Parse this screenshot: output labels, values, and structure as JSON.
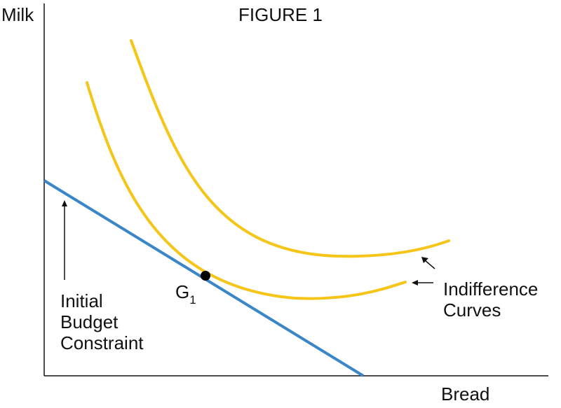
{
  "figure": {
    "title": "FIGURE 1",
    "y_axis_label": "Milk",
    "x_axis_label": "Bread",
    "budget_label": [
      "Initial",
      "Budget",
      "Constraint"
    ],
    "point_label": "G",
    "point_subscript": "1",
    "indifference_label": [
      "Indifference",
      "Curves"
    ]
  },
  "colors": {
    "budget_line": "#3a86c8",
    "indifference_curve": "#f5c518",
    "point": "#000000",
    "axis": "#111111"
  }
}
